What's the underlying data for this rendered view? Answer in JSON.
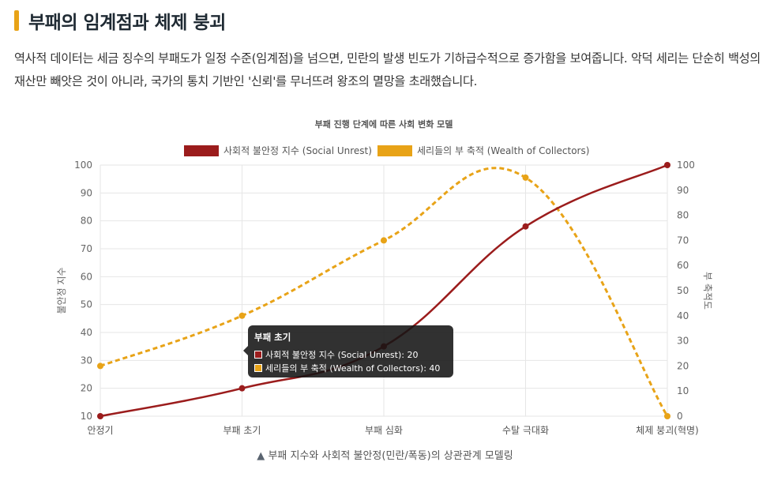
{
  "page": {
    "title": "부패의 임계점과 체제 붕괴",
    "description": "역사적 데이터는 세금 징수의 부패도가 일정 수준(임계점)을 넘으면, 민란의 발생 빈도가 기하급수적으로 증가함을 보여줍니다. 악덕 세리는 단순히 백성의 재산만 빼앗은 것이 아니라, 국가의 통치 기반인 '신뢰'를 무너뜨려 왕조의 멸망을 초래했습니다.",
    "caption_icon": "▲",
    "caption": "부패 지수와 사회적 불안정(민란/폭동)의 상관관계 모델링"
  },
  "chart_data": {
    "type": "line",
    "title": "부패 진행 단계에 따른 사회 변화 모델",
    "categories": [
      "안정기",
      "부패 초기",
      "부패 심화",
      "수탈 극대화",
      "체제 붕괴(혁명)"
    ],
    "series": [
      {
        "name": "사회적 불안정 지수 (Social Unrest)",
        "values": [
          10,
          20,
          35,
          78,
          100
        ],
        "color": "#9b1c1c",
        "style": "solid",
        "axis": "left"
      },
      {
        "name": "세리들의 부 축적 (Wealth of Collectors)",
        "values": [
          20,
          40,
          70,
          95,
          0
        ],
        "color": "#e8a317",
        "style": "dashed",
        "axis": "right"
      }
    ],
    "y_left": {
      "label": "불안정 지수",
      "min": 10,
      "max": 100,
      "ticks": [
        10,
        20,
        30,
        40,
        50,
        60,
        70,
        80,
        90,
        100
      ]
    },
    "y_right": {
      "label": "부 축적도",
      "min": 0,
      "max": 100,
      "ticks": [
        0,
        10,
        20,
        30,
        40,
        50,
        60,
        70,
        80,
        90,
        100
      ]
    },
    "grid": true,
    "legend": "top",
    "tooltip": {
      "title": "부패 초기",
      "rows": [
        "사회적 불안정 지수 (Social Unrest): 20",
        "세리들의 부 축적 (Wealth of Collectors): 40"
      ]
    }
  }
}
